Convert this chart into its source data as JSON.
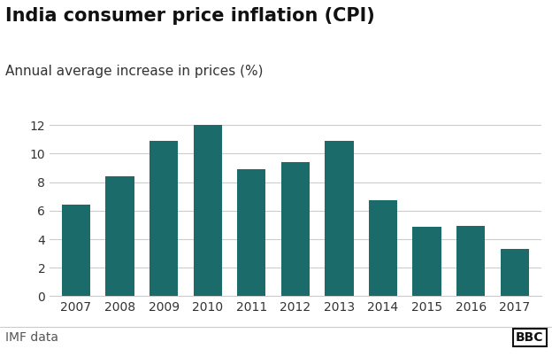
{
  "title": "India consumer price inflation (CPI)",
  "subtitle": "Annual average increase in prices (%)",
  "years": [
    2007,
    2008,
    2009,
    2010,
    2011,
    2012,
    2013,
    2014,
    2015,
    2016,
    2017
  ],
  "values": [
    6.4,
    8.4,
    10.9,
    12.0,
    8.9,
    9.4,
    10.9,
    6.7,
    4.9,
    4.95,
    3.3
  ],
  "bar_color": "#1c6b6b",
  "background_color": "#ffffff",
  "ylim": [
    0,
    13
  ],
  "yticks": [
    0,
    2,
    4,
    6,
    8,
    10,
    12
  ],
  "footer_left": "IMF data",
  "footer_right": "BBC",
  "title_fontsize": 15,
  "subtitle_fontsize": 11,
  "tick_fontsize": 10,
  "footer_fontsize": 10
}
